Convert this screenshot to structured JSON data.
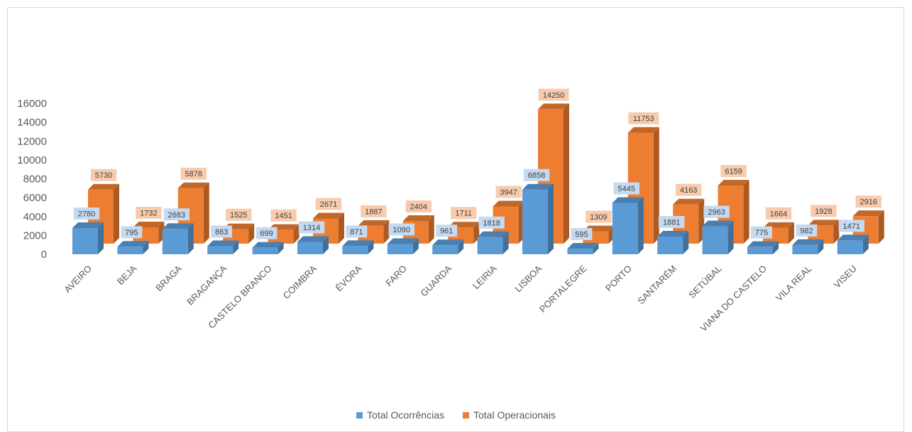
{
  "chart_data": {
    "type": "bar",
    "title": "",
    "xlabel": "",
    "ylabel": "",
    "ylim": [
      0,
      16000
    ],
    "yticks": [
      0,
      2000,
      4000,
      6000,
      8000,
      10000,
      12000,
      14000,
      16000
    ],
    "grid": false,
    "legend_position": "bottom",
    "categories": [
      "AVEIRO",
      "BEJA",
      "BRAGA",
      "BRAGANÇA",
      "CASTELO BRANCO",
      "COIMBRA",
      "ÉVORA",
      "FARO",
      "GUARDA",
      "LEIRIA",
      "LISBOA",
      "PORTALEGRE",
      "PORTO",
      "SANTARÉM",
      "SETÚBAL",
      "VIANA DO CASTELO",
      "VILA REAL",
      "VISEU"
    ],
    "series": [
      {
        "name": "Total Ocorrências",
        "color": "#5b9bd5",
        "label_bg": "#c5daf0",
        "values": [
          2780,
          795,
          2683,
          863,
          699,
          1314,
          871,
          1090,
          961,
          1818,
          6858,
          595,
          5445,
          1881,
          2963,
          775,
          982,
          1471
        ]
      },
      {
        "name": "Total Operacionais",
        "color": "#ed7d31",
        "label_bg": "#f8cbad",
        "values": [
          5730,
          1732,
          5878,
          1525,
          1451,
          2671,
          1887,
          2404,
          1711,
          3947,
          14250,
          1309,
          11753,
          4163,
          6159,
          1664,
          1928,
          2916
        ]
      }
    ]
  }
}
